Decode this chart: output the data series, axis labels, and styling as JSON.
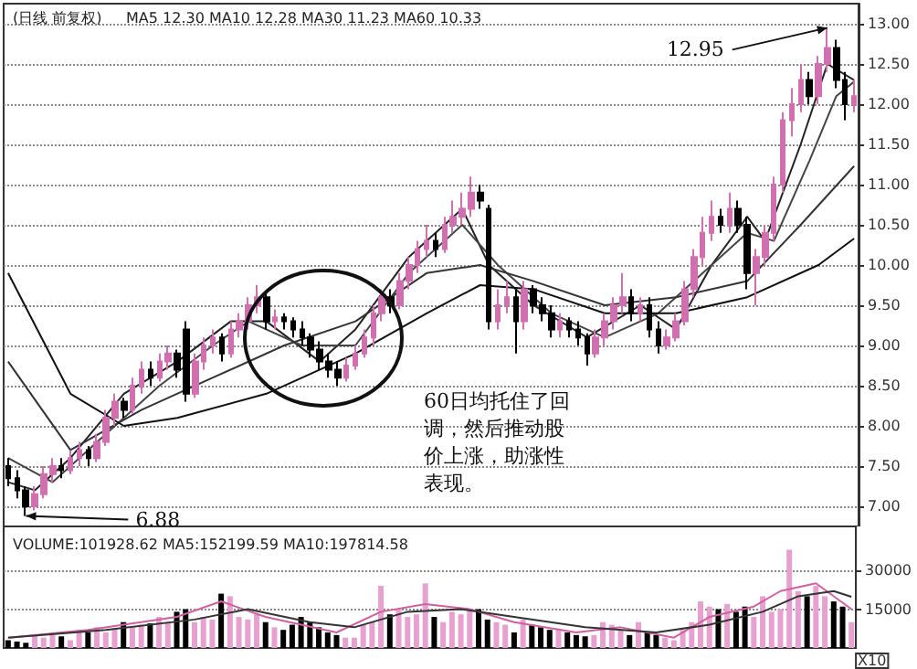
{
  "chart_data": [
    {
      "type": "candlestick",
      "title": "(日线 前复权)",
      "subtitle": "MA5 12.30 MA10 12.28 MA30 11.23 MA60 10.33",
      "colors": [
        "#000000",
        "#000000",
        "#000000",
        "#d070b0",
        "#d070b0",
        "#d070b0",
        "#000000",
        "#d070b0",
        "#d070b0",
        "#000000",
        "#d070b0",
        "#d070b0",
        "#d070b0",
        "#000000",
        "#d070b0",
        "#d070b0",
        "#000000",
        "#d070b0",
        "#d070b0",
        "#000000",
        "#000000",
        "#d070b0",
        "#d070b0",
        "#d070b0",
        "#000000",
        "#d070b0",
        "#d070b0",
        "#d070b0",
        "#d070b0",
        "#000000",
        "#d070b0",
        "#000000",
        "#000000",
        "#000000",
        "#000000",
        "#000000",
        "#000000",
        "#000000",
        "#d070b0",
        "#d070b0",
        "#d070b0",
        "#d070b0",
        "#d070b0",
        "#000000",
        "#d070b0",
        "#d070b0",
        "#d070b0",
        "#d070b0",
        "#000000",
        "#d070b0",
        "#d070b0",
        "#d070b0",
        "#d070b0",
        "#000000",
        "#000000",
        "#d070b0",
        "#d070b0",
        "#000000",
        "#d070b0",
        "#000000",
        "#000000",
        "#000000",
        "#d070b0",
        "#000000",
        "#000000",
        "#000000",
        "#d070b0",
        "#d070b0",
        "#d070b0",
        "#d070b0",
        "#000000",
        "#d070b0",
        "#000000",
        "#000000",
        "#d070b0",
        "#d070b0",
        "#d070b0",
        "#d070b0",
        "#d070b0",
        "#d070b0",
        "#000000",
        "#d070b0",
        "#000000",
        "#000000",
        "#d070b0",
        "#d070b0",
        "#d070b0",
        "#d070b0",
        "#d070b0",
        "#d070b0",
        "#000000",
        "#d070b0",
        "#d070b0",
        "#000000",
        "#000000",
        "#d070b0"
      ],
      "categories": [
        null,
        null,
        null,
        null,
        null,
        null,
        null,
        null,
        null,
        null,
        null,
        null,
        null,
        null,
        null,
        null,
        null,
        null,
        null,
        null,
        null,
        null,
        null,
        null,
        null,
        null,
        null,
        null,
        null,
        null,
        null,
        null,
        null,
        null,
        null,
        null,
        null,
        null,
        null,
        null,
        null,
        null,
        null,
        null,
        null,
        null,
        null,
        null,
        null,
        null,
        null,
        null,
        null,
        null,
        null,
        null,
        null,
        null,
        null,
        null,
        null,
        null,
        null,
        null,
        null,
        null,
        null,
        null,
        null,
        null,
        null,
        null,
        null,
        null,
        null,
        null,
        null,
        null,
        null,
        null,
        null,
        null,
        null,
        null,
        null,
        null,
        null,
        null,
        null,
        null,
        null,
        null,
        null,
        null,
        null,
        null
      ],
      "ohlc": [
        [
          7.5,
          7.6,
          7.25,
          7.35
        ],
        [
          7.35,
          7.45,
          7.1,
          7.2
        ],
        [
          7.2,
          7.25,
          6.88,
          7.0
        ],
        [
          7.0,
          7.25,
          6.95,
          7.15
        ],
        [
          7.15,
          7.5,
          7.1,
          7.4
        ],
        [
          7.4,
          7.6,
          7.3,
          7.5
        ],
        [
          7.5,
          7.6,
          7.35,
          7.45
        ],
        [
          7.45,
          7.7,
          7.4,
          7.6
        ],
        [
          7.6,
          7.8,
          7.5,
          7.7
        ],
        [
          7.7,
          7.75,
          7.5,
          7.6
        ],
        [
          7.6,
          7.9,
          7.55,
          7.8
        ],
        [
          7.8,
          8.2,
          7.75,
          8.1
        ],
        [
          8.1,
          8.4,
          8.0,
          8.3
        ],
        [
          8.3,
          8.35,
          8.1,
          8.2
        ],
        [
          8.2,
          8.6,
          8.15,
          8.5
        ],
        [
          8.5,
          8.8,
          8.4,
          8.7
        ],
        [
          8.7,
          8.8,
          8.5,
          8.6
        ],
        [
          8.6,
          8.9,
          8.55,
          8.8
        ],
        [
          8.8,
          9.0,
          8.7,
          8.9
        ],
        [
          8.9,
          8.95,
          8.6,
          8.7
        ],
        [
          9.2,
          9.3,
          8.3,
          8.4
        ],
        [
          8.4,
          8.9,
          8.35,
          8.8
        ],
        [
          8.8,
          9.1,
          8.7,
          9.0
        ],
        [
          9.0,
          9.2,
          8.9,
          9.1
        ],
        [
          9.1,
          9.15,
          8.8,
          8.9
        ],
        [
          8.9,
          9.3,
          8.85,
          9.2
        ],
        [
          9.2,
          9.4,
          9.1,
          9.3
        ],
        [
          9.3,
          9.6,
          9.2,
          9.5
        ],
        [
          9.5,
          9.75,
          9.4,
          9.6
        ],
        [
          9.6,
          9.65,
          9.2,
          9.3
        ],
        [
          9.3,
          9.45,
          9.2,
          9.35
        ],
        [
          9.35,
          9.4,
          9.2,
          9.3
        ],
        [
          9.3,
          9.35,
          9.1,
          9.2
        ],
        [
          9.2,
          9.3,
          9.0,
          9.1
        ],
        [
          9.1,
          9.15,
          8.85,
          8.95
        ],
        [
          8.95,
          9.05,
          8.7,
          8.8
        ],
        [
          8.8,
          8.9,
          8.6,
          8.7
        ],
        [
          8.7,
          8.8,
          8.5,
          8.6
        ],
        [
          8.6,
          8.85,
          8.55,
          8.75
        ],
        [
          8.75,
          9.0,
          8.7,
          8.9
        ],
        [
          8.9,
          9.2,
          8.85,
          9.1
        ],
        [
          9.1,
          9.5,
          9.0,
          9.4
        ],
        [
          9.4,
          9.7,
          9.3,
          9.6
        ],
        [
          9.6,
          9.7,
          9.4,
          9.5
        ],
        [
          9.5,
          9.9,
          9.45,
          9.8
        ],
        [
          9.8,
          10.1,
          9.7,
          10.0
        ],
        [
          10.0,
          10.3,
          9.9,
          10.2
        ],
        [
          10.2,
          10.5,
          10.1,
          10.3
        ],
        [
          10.3,
          10.4,
          10.1,
          10.2
        ],
        [
          10.2,
          10.6,
          10.15,
          10.5
        ],
        [
          10.5,
          10.8,
          10.4,
          10.6
        ],
        [
          10.6,
          10.9,
          10.5,
          10.7
        ],
        [
          10.7,
          11.1,
          10.6,
          10.9
        ],
        [
          10.9,
          11.0,
          10.7,
          10.8
        ],
        [
          10.7,
          10.75,
          9.2,
          9.3
        ],
        [
          9.3,
          9.7,
          9.2,
          9.5
        ],
        [
          9.5,
          9.8,
          9.4,
          9.6
        ],
        [
          9.6,
          9.7,
          8.9,
          9.3
        ],
        [
          9.3,
          9.8,
          9.2,
          9.7
        ],
        [
          9.7,
          9.75,
          9.4,
          9.5
        ],
        [
          9.5,
          9.6,
          9.3,
          9.4
        ],
        [
          9.4,
          9.5,
          9.1,
          9.2
        ],
        [
          9.2,
          9.4,
          9.1,
          9.3
        ],
        [
          9.3,
          9.35,
          9.1,
          9.2
        ],
        [
          9.2,
          9.3,
          9.0,
          9.1
        ],
        [
          9.1,
          9.15,
          8.75,
          8.9
        ],
        [
          8.9,
          9.2,
          8.85,
          9.1
        ],
        [
          9.1,
          9.4,
          9.0,
          9.3
        ],
        [
          9.3,
          9.6,
          9.2,
          9.5
        ],
        [
          9.5,
          9.9,
          9.4,
          9.6
        ],
        [
          9.6,
          9.7,
          9.3,
          9.4
        ],
        [
          9.4,
          9.6,
          9.3,
          9.5
        ],
        [
          9.5,
          9.6,
          9.1,
          9.2
        ],
        [
          9.2,
          9.3,
          8.9,
          9.0
        ],
        [
          9.0,
          9.2,
          8.95,
          9.1
        ],
        [
          9.1,
          9.4,
          9.05,
          9.3
        ],
        [
          9.3,
          9.8,
          9.25,
          9.7
        ],
        [
          9.7,
          10.2,
          9.6,
          10.1
        ],
        [
          10.1,
          10.6,
          10.0,
          10.4
        ],
        [
          10.4,
          10.8,
          10.3,
          10.6
        ],
        [
          10.6,
          10.7,
          10.4,
          10.5
        ],
        [
          10.5,
          10.9,
          10.4,
          10.7
        ],
        [
          10.7,
          10.8,
          10.4,
          10.5
        ],
        [
          10.5,
          10.6,
          9.7,
          9.9
        ],
        [
          9.9,
          10.2,
          9.5,
          10.1
        ],
        [
          10.1,
          10.5,
          10.0,
          10.4
        ],
        [
          10.4,
          11.1,
          10.3,
          11.0
        ],
        [
          11.0,
          11.9,
          10.9,
          11.8
        ],
        [
          11.8,
          12.2,
          11.6,
          12.0
        ],
        [
          12.0,
          12.5,
          11.9,
          12.3
        ],
        [
          12.3,
          12.4,
          12.0,
          12.1
        ],
        [
          12.1,
          12.6,
          12.0,
          12.5
        ],
        [
          12.5,
          12.95,
          12.4,
          12.7
        ],
        [
          12.7,
          12.8,
          12.2,
          12.3
        ],
        [
          12.3,
          12.4,
          11.8,
          12.0
        ],
        [
          12.0,
          12.3,
          11.9,
          12.1
        ]
      ],
      "series": [
        {
          "type": "line",
          "color": "#222222",
          "values": [
            7.3,
            null,
            null,
            7.2,
            null,
            null,
            null,
            7.6,
            null,
            null,
            null,
            null,
            null,
            8.4,
            null,
            null,
            null,
            null,
            null,
            8.8,
            null,
            null,
            null,
            null,
            null,
            9.3,
            null,
            null,
            null,
            9.3,
            null,
            null,
            null,
            null,
            null,
            8.8,
            null,
            null,
            null,
            9.2,
            null,
            null,
            null,
            null,
            null,
            10.1,
            null,
            null,
            null,
            null,
            null,
            10.7,
            null,
            null,
            10.0,
            null,
            null,
            null,
            null,
            9.5,
            null,
            null,
            null,
            null,
            null,
            9.1,
            null,
            null,
            null,
            null,
            null,
            9.5,
            null,
            null,
            null,
            9.2,
            null,
            null,
            null,
            10.0,
            null,
            null,
            null,
            10.6,
            null,
            10.3,
            null,
            null,
            null,
            11.5,
            null,
            null,
            12.5,
            null,
            null,
            12.3
          ]
        },
        {
          "type": "line",
          "color": "#444444",
          "values": [
            7.6,
            null,
            null,
            null,
            null,
            7.3,
            null,
            null,
            null,
            null,
            null,
            7.9,
            null,
            null,
            null,
            null,
            null,
            8.5,
            null,
            null,
            null,
            null,
            null,
            9.0,
            null,
            null,
            null,
            9.3,
            null,
            null,
            null,
            null,
            null,
            9.0,
            null,
            null,
            null,
            null,
            null,
            9.0,
            null,
            null,
            null,
            null,
            null,
            9.9,
            null,
            null,
            null,
            null,
            null,
            10.5,
            null,
            null,
            null,
            10.0,
            null,
            null,
            null,
            null,
            null,
            9.4,
            null,
            null,
            null,
            null,
            null,
            9.1,
            null,
            null,
            null,
            null,
            null,
            9.4,
            null,
            null,
            null,
            null,
            null,
            10.0,
            null,
            null,
            null,
            10.4,
            null,
            null,
            10.3,
            null,
            null,
            null,
            11.3,
            null,
            null,
            12.1,
            null,
            12.28
          ]
        },
        {
          "type": "line",
          "color": "#333333",
          "values": [
            8.8,
            null,
            null,
            null,
            null,
            null,
            null,
            7.7,
            null,
            null,
            null,
            null,
            null,
            null,
            null,
            8.2,
            null,
            null,
            null,
            null,
            null,
            null,
            null,
            8.6,
            null,
            null,
            null,
            null,
            null,
            null,
            null,
            9.0,
            null,
            null,
            null,
            null,
            null,
            null,
            null,
            9.3,
            null,
            null,
            null,
            null,
            null,
            null,
            null,
            9.9,
            null,
            null,
            null,
            null,
            null,
            10.0,
            null,
            null,
            null,
            null,
            null,
            9.8,
            null,
            null,
            null,
            null,
            null,
            null,
            null,
            9.5,
            null,
            null,
            null,
            null,
            null,
            null,
            null,
            9.6,
            null,
            null,
            null,
            null,
            null,
            null,
            null,
            9.8,
            null,
            null,
            null,
            null,
            null,
            10.5,
            null,
            null,
            null,
            null,
            null,
            11.23
          ]
        },
        {
          "type": "line",
          "color": "#111111",
          "values": [
            9.9,
            null,
            null,
            null,
            null,
            null,
            null,
            8.4,
            null,
            null,
            null,
            null,
            null,
            8.0,
            null,
            null,
            null,
            null,
            null,
            8.1,
            null,
            null,
            null,
            null,
            null,
            null,
            null,
            null,
            null,
            8.4,
            null,
            null,
            null,
            null,
            null,
            null,
            null,
            null,
            null,
            8.9,
            null,
            null,
            null,
            null,
            null,
            null,
            null,
            9.4,
            null,
            null,
            null,
            null,
            null,
            9.75,
            null,
            null,
            null,
            null,
            null,
            9.7,
            null,
            null,
            null,
            null,
            null,
            null,
            null,
            9.4,
            null,
            null,
            null,
            null,
            null,
            null,
            null,
            9.4,
            null,
            null,
            null,
            null,
            null,
            null,
            null,
            9.6,
            null,
            null,
            null,
            null,
            null,
            null,
            null,
            10.0,
            null,
            null,
            null,
            10.33
          ]
        }
      ],
      "annotations": [
        "12.95",
        "6.88",
        "60日均托住了回调，然后推动股价上涨，助涨性表现。"
      ],
      "ylim": [
        6.75,
        13.25
      ],
      "yticks": [
        {
          "value": 7,
          "label": "7.00"
        },
        {
          "value": 7.5,
          "label": "7.50"
        },
        {
          "value": 8,
          "label": "8.00"
        },
        {
          "value": 8.5,
          "label": "8.50"
        },
        {
          "value": 9,
          "label": "9.00"
        },
        {
          "value": 9.5,
          "label": "9.50"
        },
        {
          "value": 10,
          "label": "10.00"
        },
        {
          "value": 10.5,
          "label": "10.50"
        },
        {
          "value": 11,
          "label": "11.00"
        },
        {
          "value": 11.5,
          "label": "11.50"
        },
        {
          "value": 12,
          "label": "12.00"
        },
        {
          "value": 12.5,
          "label": "12.50"
        },
        {
          "value": 13,
          "label": "13.00"
        }
      ],
      "grid": "y",
      "tick_labels": "y"
    },
    {
      "type": "bar",
      "title": "VOLUME:101928.62 MA5:152199.59 MA10:197814.58",
      "ylabel": "X10",
      "categories": [
        null,
        null,
        null,
        null,
        null,
        null,
        null,
        null,
        null,
        null,
        null,
        null,
        null,
        null,
        null,
        null,
        null,
        null,
        null,
        null,
        null,
        null,
        null,
        null,
        null,
        null,
        null,
        null,
        null,
        null,
        null,
        null,
        null,
        null,
        null,
        null,
        null,
        null,
        null,
        null,
        null,
        null,
        null,
        null,
        null,
        null,
        null,
        null,
        null,
        null,
        null,
        null,
        null,
        null,
        null,
        null,
        null,
        null,
        null,
        null,
        null,
        null,
        null,
        null,
        null,
        null,
        null,
        null,
        null,
        null,
        null,
        null,
        null,
        null,
        null,
        null,
        null,
        null,
        null,
        null,
        null,
        null,
        null,
        null,
        null,
        null,
        null,
        null,
        null,
        null,
        null,
        null,
        null,
        null,
        null,
        null
      ],
      "values": [
        3000,
        2500,
        2000,
        5000,
        4000,
        5000,
        4500,
        3000,
        7000,
        6000,
        8000,
        6000,
        7500,
        10000,
        8000,
        9000,
        9500,
        12000,
        10000,
        14000,
        15000,
        10000,
        12000,
        11000,
        21000,
        20000,
        12000,
        11000,
        13000,
        10000,
        8000,
        7000,
        9000,
        12000,
        10000,
        8000,
        6000,
        5000,
        4000,
        4000,
        9000,
        10000,
        24000,
        13000,
        15000,
        12000,
        13000,
        25000,
        12000,
        10000,
        14000,
        13000,
        15000,
        15000,
        11000,
        10000,
        9000,
        6000,
        11000,
        9000,
        8000,
        7000,
        7500,
        6000,
        5000,
        4500,
        5000,
        10000,
        9000,
        7000,
        5000,
        10000,
        6000,
        5000,
        4000,
        3000,
        7000,
        10000,
        18000,
        16000,
        15000,
        17000,
        14000,
        16000,
        12000,
        20000,
        14000,
        15000,
        38000,
        22000,
        20000,
        24000,
        20000,
        18000,
        16000,
        10000
      ],
      "colors": [
        "#000000",
        "#000000",
        "#000000",
        "#e8a0d0",
        "#e8a0d0",
        "#e8a0d0",
        "#000000",
        "#e8a0d0",
        "#e8a0d0",
        "#000000",
        "#e8a0d0",
        "#e8a0d0",
        "#e8a0d0",
        "#000000",
        "#e8a0d0",
        "#e8a0d0",
        "#000000",
        "#e8a0d0",
        "#e8a0d0",
        "#000000",
        "#000000",
        "#e8a0d0",
        "#e8a0d0",
        "#e8a0d0",
        "#000000",
        "#e8a0d0",
        "#e8a0d0",
        "#e8a0d0",
        "#e8a0d0",
        "#000000",
        "#e8a0d0",
        "#000000",
        "#000000",
        "#000000",
        "#000000",
        "#000000",
        "#000000",
        "#000000",
        "#e8a0d0",
        "#e8a0d0",
        "#e8a0d0",
        "#e8a0d0",
        "#e8a0d0",
        "#000000",
        "#e8a0d0",
        "#e8a0d0",
        "#e8a0d0",
        "#e8a0d0",
        "#000000",
        "#e8a0d0",
        "#e8a0d0",
        "#e8a0d0",
        "#e8a0d0",
        "#000000",
        "#000000",
        "#e8a0d0",
        "#e8a0d0",
        "#000000",
        "#e8a0d0",
        "#000000",
        "#000000",
        "#000000",
        "#e8a0d0",
        "#000000",
        "#000000",
        "#000000",
        "#e8a0d0",
        "#e8a0d0",
        "#e8a0d0",
        "#e8a0d0",
        "#000000",
        "#e8a0d0",
        "#000000",
        "#000000",
        "#e8a0d0",
        "#e8a0d0",
        "#e8a0d0",
        "#e8a0d0",
        "#e8a0d0",
        "#e8a0d0",
        "#000000",
        "#e8a0d0",
        "#000000",
        "#000000",
        "#e8a0d0",
        "#e8a0d0",
        "#e8a0d0",
        "#e8a0d0",
        "#e8a0d0",
        "#e8a0d0",
        "#000000",
        "#e8a0d0",
        "#e8a0d0",
        "#000000",
        "#000000",
        "#e8a0d0"
      ],
      "series": [
        {
          "type": "line",
          "color": "#d060a0",
          "values": [
            4000,
            null,
            null,
            null,
            null,
            null,
            null,
            null,
            null,
            7000,
            null,
            null,
            null,
            null,
            null,
            null,
            null,
            null,
            null,
            12000,
            null,
            null,
            null,
            null,
            18000,
            null,
            null,
            null,
            null,
            12000,
            null,
            null,
            null,
            null,
            null,
            null,
            null,
            6000,
            null,
            null,
            null,
            null,
            14000,
            null,
            null,
            null,
            null,
            17000,
            null,
            null,
            null,
            null,
            15000,
            null,
            null,
            null,
            null,
            10000,
            null,
            null,
            null,
            null,
            null,
            null,
            6000,
            null,
            null,
            null,
            null,
            8000,
            null,
            null,
            null,
            null,
            null,
            4000,
            null,
            null,
            null,
            12000,
            null,
            null,
            null,
            null,
            16000,
            null,
            null,
            22000,
            null,
            null,
            null,
            25000,
            null,
            null,
            null,
            15000
          ]
        },
        {
          "type": "line",
          "color": "#333333",
          "values": [
            4000,
            null,
            null,
            null,
            null,
            null,
            null,
            null,
            null,
            null,
            null,
            7000,
            null,
            null,
            null,
            null,
            null,
            null,
            null,
            null,
            null,
            11000,
            null,
            null,
            null,
            null,
            null,
            15000,
            null,
            null,
            null,
            null,
            null,
            null,
            10000,
            null,
            null,
            null,
            null,
            8000,
            null,
            null,
            null,
            null,
            null,
            14000,
            null,
            null,
            null,
            null,
            null,
            15000,
            null,
            null,
            null,
            null,
            null,
            12000,
            null,
            null,
            null,
            null,
            null,
            null,
            null,
            8000,
            null,
            null,
            null,
            null,
            null,
            null,
            null,
            6000,
            null,
            null,
            null,
            null,
            null,
            9000,
            null,
            null,
            null,
            null,
            null,
            14000,
            null,
            null,
            null,
            20000,
            null,
            null,
            null,
            22000,
            null,
            19800
          ]
        }
      ],
      "ylim": [
        0,
        47000
      ],
      "yticks": [
        15000,
        30000
      ],
      "grid": "y",
      "tick_labels": "y"
    }
  ]
}
